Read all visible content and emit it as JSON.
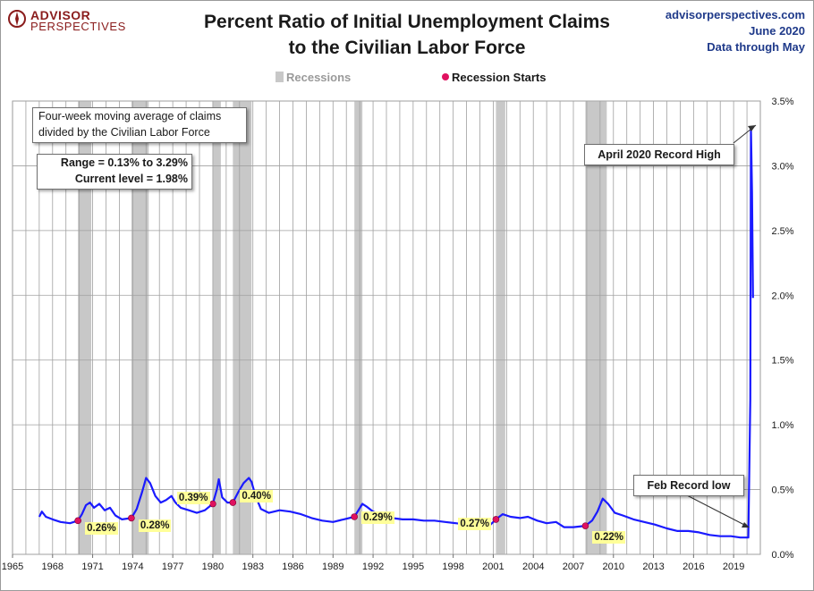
{
  "header": {
    "brand_line1": "ADVISOR",
    "brand_line2": "PERSPECTIVES",
    "title_line1": "Percent Ratio of Initial Unemployment Claims",
    "title_line2": "to the Civilian Labor Force",
    "site": "advisorperspectives.com",
    "date": "June 2020",
    "through": "Data through May"
  },
  "legend": {
    "recessions": "Recessions",
    "recession_starts": "Recession Starts"
  },
  "annotations": {
    "desc_line1": "Four-week moving average of claims",
    "desc_line2": "divided by the Civilian Labor Force",
    "range": "Range = 0.13% to 3.29%",
    "current": "Current level = 1.98%",
    "record_high": "April 2020  Record High",
    "record_low": "Feb Record low"
  },
  "colors": {
    "line": "#1a1aff",
    "recession_fill": "#c8c8c8",
    "recession_dot": "#e0115f",
    "label_bg": "#ffff99",
    "title_link": "#1f3a8a"
  },
  "chart_data": {
    "type": "line",
    "title": "Percent Ratio of Initial Unemployment Claims to the Civilian Labor Force",
    "xlim": [
      1965,
      2021
    ],
    "ylim": [
      0,
      3.5
    ],
    "y_ticks": [
      "0.0%",
      "0.5%",
      "1.0%",
      "1.5%",
      "2.0%",
      "2.5%",
      "3.0%",
      "3.5%"
    ],
    "y_tick_values": [
      0,
      0.5,
      1.0,
      1.5,
      2.0,
      2.5,
      3.0,
      3.5
    ],
    "x_ticks": [
      "1965",
      "1968",
      "1971",
      "1974",
      "1977",
      "1980",
      "1983",
      "1986",
      "1989",
      "1992",
      "1995",
      "1998",
      "2001",
      "2004",
      "2007",
      "2010",
      "2013",
      "2016",
      "2019"
    ],
    "x_tick_values": [
      1965,
      1968,
      1971,
      1974,
      1977,
      1980,
      1983,
      1986,
      1989,
      1992,
      1995,
      1998,
      2001,
      2004,
      2007,
      2010,
      2013,
      2016,
      2019
    ],
    "grid": true,
    "legend_position": "top-center",
    "recessions": [
      [
        1969.9,
        1970.9
      ],
      [
        1973.9,
        1975.2
      ],
      [
        1980.0,
        1980.6
      ],
      [
        1981.5,
        1982.9
      ],
      [
        1990.6,
        1991.2
      ],
      [
        2001.2,
        2001.9
      ],
      [
        2007.9,
        2009.5
      ]
    ],
    "recession_start_points": [
      {
        "x": 1969.9,
        "y": 0.26,
        "label": "0.26%"
      },
      {
        "x": 1973.9,
        "y": 0.28,
        "label": "0.28%"
      },
      {
        "x": 1980.0,
        "y": 0.39,
        "label": "0.39%"
      },
      {
        "x": 1981.5,
        "y": 0.4,
        "label": "0.40%"
      },
      {
        "x": 1990.6,
        "y": 0.29,
        "label": "0.29%"
      },
      {
        "x": 2001.2,
        "y": 0.27,
        "label": "0.27%"
      },
      {
        "x": 2007.9,
        "y": 0.22,
        "label": "0.22%"
      }
    ],
    "series": [
      {
        "values": [
          [
            1967.0,
            0.29
          ],
          [
            1967.2,
            0.33
          ],
          [
            1967.5,
            0.29
          ],
          [
            1968.0,
            0.27
          ],
          [
            1968.6,
            0.25
          ],
          [
            1969.3,
            0.24
          ],
          [
            1969.9,
            0.26
          ],
          [
            1970.2,
            0.31
          ],
          [
            1970.5,
            0.38
          ],
          [
            1970.8,
            0.4
          ],
          [
            1971.1,
            0.36
          ],
          [
            1971.5,
            0.39
          ],
          [
            1971.9,
            0.34
          ],
          [
            1972.3,
            0.36
          ],
          [
            1972.7,
            0.3
          ],
          [
            1973.2,
            0.27
          ],
          [
            1973.9,
            0.28
          ],
          [
            1974.3,
            0.35
          ],
          [
            1974.7,
            0.48
          ],
          [
            1975.0,
            0.59
          ],
          [
            1975.3,
            0.55
          ],
          [
            1975.7,
            0.45
          ],
          [
            1976.1,
            0.4
          ],
          [
            1976.5,
            0.42
          ],
          [
            1976.9,
            0.45
          ],
          [
            1977.2,
            0.4
          ],
          [
            1977.6,
            0.36
          ],
          [
            1978.2,
            0.34
          ],
          [
            1978.8,
            0.32
          ],
          [
            1979.4,
            0.34
          ],
          [
            1980.0,
            0.39
          ],
          [
            1980.3,
            0.5
          ],
          [
            1980.45,
            0.58
          ],
          [
            1980.7,
            0.44
          ],
          [
            1981.1,
            0.4
          ],
          [
            1981.5,
            0.4
          ],
          [
            1981.9,
            0.48
          ],
          [
            1982.3,
            0.55
          ],
          [
            1982.7,
            0.59
          ],
          [
            1982.9,
            0.56
          ],
          [
            1983.2,
            0.45
          ],
          [
            1983.6,
            0.35
          ],
          [
            1984.2,
            0.32
          ],
          [
            1985.0,
            0.34
          ],
          [
            1985.8,
            0.33
          ],
          [
            1986.6,
            0.31
          ],
          [
            1987.4,
            0.28
          ],
          [
            1988.2,
            0.26
          ],
          [
            1989.0,
            0.25
          ],
          [
            1989.8,
            0.27
          ],
          [
            1990.6,
            0.29
          ],
          [
            1990.9,
            0.34
          ],
          [
            1991.2,
            0.39
          ],
          [
            1991.5,
            0.37
          ],
          [
            1992.0,
            0.33
          ],
          [
            1992.7,
            0.3
          ],
          [
            1993.4,
            0.28
          ],
          [
            1994.2,
            0.27
          ],
          [
            1995.0,
            0.27
          ],
          [
            1995.8,
            0.26
          ],
          [
            1996.6,
            0.26
          ],
          [
            1997.4,
            0.25
          ],
          [
            1998.2,
            0.24
          ],
          [
            1999.0,
            0.23
          ],
          [
            1999.8,
            0.21
          ],
          [
            2000.5,
            0.2
          ],
          [
            2001.2,
            0.27
          ],
          [
            2001.7,
            0.31
          ],
          [
            2002.3,
            0.29
          ],
          [
            2003.0,
            0.28
          ],
          [
            2003.6,
            0.29
          ],
          [
            2004.3,
            0.26
          ],
          [
            2005.0,
            0.24
          ],
          [
            2005.7,
            0.25
          ],
          [
            2006.3,
            0.21
          ],
          [
            2007.0,
            0.21
          ],
          [
            2007.9,
            0.22
          ],
          [
            2008.4,
            0.26
          ],
          [
            2008.8,
            0.33
          ],
          [
            2009.2,
            0.43
          ],
          [
            2009.6,
            0.39
          ],
          [
            2010.1,
            0.32
          ],
          [
            2010.7,
            0.3
          ],
          [
            2011.5,
            0.27
          ],
          [
            2012.3,
            0.25
          ],
          [
            2013.1,
            0.23
          ],
          [
            2014.0,
            0.2
          ],
          [
            2014.8,
            0.18
          ],
          [
            2015.6,
            0.18
          ],
          [
            2016.4,
            0.17
          ],
          [
            2017.2,
            0.15
          ],
          [
            2018.0,
            0.14
          ],
          [
            2018.8,
            0.14
          ],
          [
            2019.5,
            0.13
          ],
          [
            2020.1,
            0.13
          ],
          [
            2020.25,
            1.2
          ],
          [
            2020.3,
            3.29
          ],
          [
            2020.38,
            2.8
          ],
          [
            2020.45,
            1.98
          ]
        ]
      }
    ]
  }
}
